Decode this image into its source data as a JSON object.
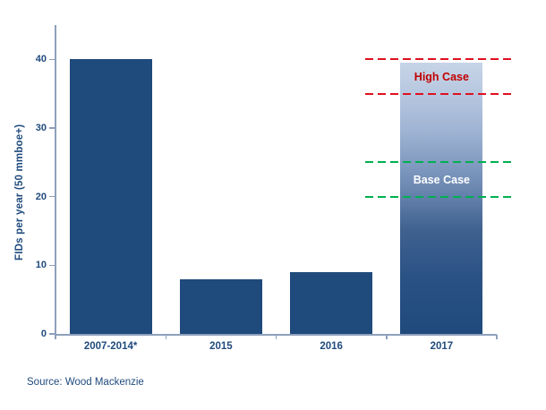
{
  "chart_data": {
    "type": "bar",
    "title": "",
    "xlabel": "",
    "ylabel": "FIDs per year (50 mmboe+)",
    "categories": [
      "2007-2014*",
      "2015",
      "2016",
      "2017"
    ],
    "values": [
      40,
      8,
      9,
      39.5
    ],
    "bar_styles": [
      "solid",
      "solid",
      "solid",
      "gradient"
    ],
    "yticks": [
      0,
      10,
      20,
      30,
      40
    ],
    "ylim": [
      0,
      45
    ],
    "grid": "off",
    "legend": "none",
    "reference_lines": [
      {
        "label": "High Case",
        "values": [
          40,
          35
        ],
        "line_color": "#E01020",
        "label_color": "#C00000"
      },
      {
        "label": "Base Case",
        "values": [
          25,
          20
        ],
        "line_color": "#00B050",
        "label_color": "#FFFFFF"
      }
    ],
    "source": "Source: Wood Mackenzie",
    "colors": {
      "bar": "#1F4A7C",
      "axis": "#8EA0BC",
      "text": "#1F4A7C",
      "gradient_bar_top": "#C7D4E8",
      "gradient_bar_mid": "#8FA8CC",
      "gradient_bar_bottom": "#1F4A7C"
    }
  }
}
